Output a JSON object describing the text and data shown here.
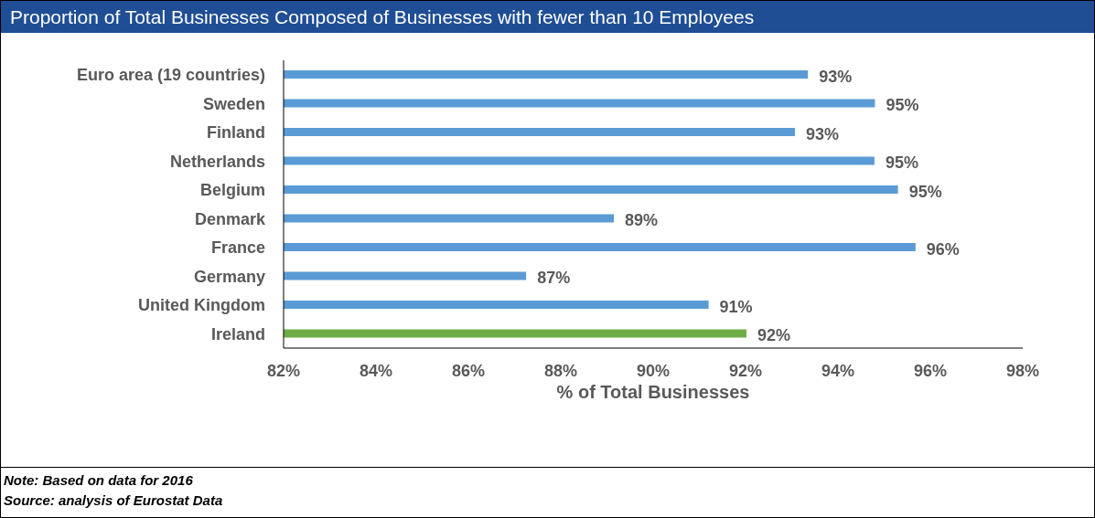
{
  "chart_data": {
    "type": "bar",
    "orientation": "horizontal",
    "title": "Proportion of Total Businesses Composed of Businesses with fewer than 10 Employees",
    "xlabel": "% of Total Businesses",
    "categories": [
      "Euro area (19 countries)",
      "Sweden",
      "Finland",
      "Netherlands",
      "Belgium",
      "Denmark",
      "France",
      "Germany",
      "United Kingdom",
      "Ireland"
    ],
    "values": [
      93.35,
      94.8,
      93.07,
      94.79,
      95.3,
      89.15,
      95.68,
      87.25,
      91.2,
      92.02
    ],
    "value_labels": [
      "93%",
      "95%",
      "93%",
      "95%",
      "95%",
      "89%",
      "96%",
      "87%",
      "91%",
      "92%"
    ],
    "colors": [
      "#5b9bd5",
      "#5b9bd5",
      "#5b9bd5",
      "#5b9bd5",
      "#5b9bd5",
      "#5b9bd5",
      "#5b9bd5",
      "#5b9bd5",
      "#5b9bd5",
      "#70ad47"
    ],
    "xlim": [
      82,
      98
    ],
    "xticks": [
      {
        "value": 82,
        "label": "82%"
      },
      {
        "value": 84,
        "label": "84%"
      },
      {
        "value": 86,
        "label": "86%"
      },
      {
        "value": 88,
        "label": "88%"
      },
      {
        "value": 90,
        "label": "90%"
      },
      {
        "value": 92,
        "label": "92%"
      },
      {
        "value": 94,
        "label": "94%"
      },
      {
        "value": 96,
        "label": "96%"
      },
      {
        "value": 98,
        "label": "98%"
      }
    ],
    "grid": false,
    "legend": false,
    "annotations": [
      "Note: Based on data for 2016",
      "Source: analysis of Eurostat Data"
    ]
  }
}
